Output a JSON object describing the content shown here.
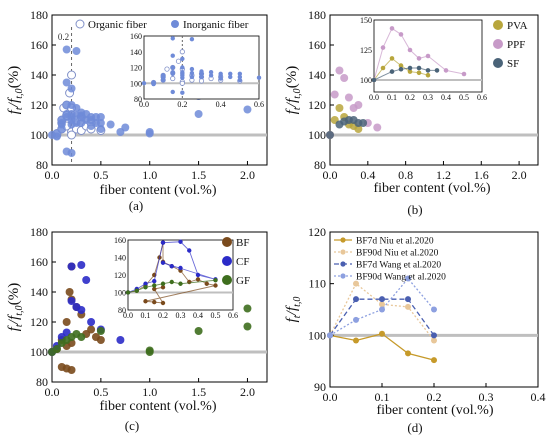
{
  "chart_data": [
    {
      "id": "a",
      "type": "scatter",
      "panel_label": "(a)",
      "xlabel": "fiber content (vol.%)",
      "ylabel_main": "f",
      "ylabel_sub": "t",
      "ylabel_over": "/f",
      "ylabel_sub2": "t,0",
      "ylabel_tail": " (%)",
      "xlim": [
        0,
        2.2
      ],
      "ylim": [
        80,
        180
      ],
      "xticks": [
        "0.0",
        "0.5",
        "1.0",
        "1.5",
        "2.0"
      ],
      "yticks": [
        "80",
        "100",
        "120",
        "140",
        "160",
        "180"
      ],
      "reference_y": 100,
      "vline_x": 0.2,
      "vline_label": "0.2",
      "legend": [
        "Organic fiber",
        "Inorganic fiber"
      ],
      "colors": {
        "organic": "#7b8ccf",
        "inorganic": "#6f8bd8",
        "reference": "#bfbfbf"
      },
      "series": [
        {
          "name": "Organic fiber",
          "style": "open",
          "x": [
            0.05,
            0.05,
            0.1,
            0.1,
            0.1,
            0.12,
            0.15,
            0.15,
            0.15,
            0.18,
            0.2,
            0.2,
            0.2,
            0.25,
            0.25,
            0.3,
            0.3,
            0.3,
            0.35,
            0.4,
            0.4,
            0.5,
            0.2
          ],
          "y": [
            100,
            101,
            104,
            108,
            110,
            118,
            106,
            113,
            120,
            128,
            102,
            118,
            140,
            104,
            110,
            108,
            112,
            103,
            106,
            108,
            104,
            103,
            100
          ]
        },
        {
          "name": "Inorganic fiber",
          "style": "filled",
          "x": [
            0.0,
            0.05,
            0.05,
            0.1,
            0.1,
            0.1,
            0.1,
            0.15,
            0.15,
            0.15,
            0.15,
            0.15,
            0.2,
            0.2,
            0.2,
            0.2,
            0.2,
            0.25,
            0.25,
            0.25,
            0.3,
            0.3,
            0.3,
            0.3,
            0.35,
            0.35,
            0.4,
            0.4,
            0.4,
            0.45,
            0.45,
            0.5,
            0.5,
            0.5,
            0.6,
            0.7,
            0.75,
            1.0,
            1.0,
            1.5,
            1.5,
            2.0,
            2.0,
            0.15,
            0.2,
            0.25,
            0.2
          ],
          "y": [
            100,
            101,
            99,
            104,
            107,
            108,
            110,
            112,
            114,
            120,
            135,
            157,
            107,
            110,
            112,
            114,
            120,
            108,
            113,
            118,
            108,
            112,
            113,
            115,
            110,
            114,
            106,
            110,
            112,
            108,
            112,
            104,
            108,
            112,
            107,
            102,
            105,
            101,
            102,
            114,
            126,
            117,
            129,
            89,
            88,
            156,
            131
          ]
        }
      ],
      "inset": {
        "xlim": [
          0,
          0.6
        ],
        "ylim": [
          80,
          160
        ],
        "xticks": [
          "0.0",
          "0.2",
          "0.4",
          "0.6"
        ],
        "yticks": [
          "80",
          "100",
          "120",
          "140",
          "160"
        ],
        "vline_x": 0.2
      }
    },
    {
      "id": "b",
      "type": "line",
      "panel_label": "(b)",
      "xlabel": "fiber content (vol.%)",
      "ylabel_main": "f",
      "ylabel_sub": "t",
      "ylabel_over": "/f",
      "ylabel_sub2": "t,0",
      "ylabel_tail": " (%)",
      "xlim": [
        0,
        2.2
      ],
      "ylim": [
        80,
        180
      ],
      "xticks": [
        "0.0",
        "0.4",
        "0.8",
        "1.2",
        "1.6",
        "2.0"
      ],
      "yticks": [
        "80",
        "100",
        "120",
        "140",
        "160",
        "180"
      ],
      "reference_y": 100,
      "legend": [
        "PVA",
        "PPF",
        "SF"
      ],
      "colors": {
        "PVA": "#b8a63c",
        "PPF": "#c79ac8",
        "SF": "#4a6378",
        "reference": "#bfbfbf"
      },
      "series": [
        {
          "name": "PVA",
          "x": [
            0.0,
            0.05,
            0.1,
            0.15,
            0.2,
            0.25,
            0.3
          ],
          "y": [
            100,
            110,
            118,
            112,
            107,
            106,
            104
          ]
        },
        {
          "name": "PPF",
          "x": [
            0.0,
            0.05,
            0.1,
            0.15,
            0.2,
            0.25,
            0.3,
            0.4,
            0.5
          ],
          "y": [
            100,
            127,
            143,
            138,
            125,
            118,
            120,
            108,
            105
          ]
        },
        {
          "name": "SF",
          "x": [
            0.0,
            0.1,
            0.15,
            0.2,
            0.25,
            0.3,
            0.35
          ],
          "y": [
            100,
            107,
            109,
            110,
            110,
            108,
            108
          ]
        }
      ],
      "inset": {
        "xlim": [
          0,
          0.6
        ],
        "ylim": [
          90,
          150
        ],
        "xticks": [
          "0.0",
          "0.1",
          "0.2",
          "0.3",
          "0.4",
          "0.5",
          "0.6"
        ],
        "yticks": [
          "100",
          "125",
          "150"
        ]
      }
    },
    {
      "id": "c",
      "type": "line",
      "panel_label": "(c)",
      "xlabel": "fiber content (vol.%)",
      "ylabel_main": "f",
      "ylabel_sub": "t",
      "ylabel_over": "/f",
      "ylabel_sub2": "t,0",
      "ylabel_tail": " (%)",
      "xlim": [
        0,
        2.2
      ],
      "ylim": [
        80,
        180
      ],
      "xticks": [
        "0.0",
        "0.5",
        "1.0",
        "1.5",
        "2.0"
      ],
      "yticks": [
        "80",
        "100",
        "120",
        "140",
        "160",
        "180"
      ],
      "reference_y": 100,
      "legend": [
        "BF",
        "CF",
        "GF"
      ],
      "colors": {
        "BF": "#7a4a1c",
        "CF": "#2b2bc8",
        "GF": "#3e6e1e",
        "reference": "#bfbfbf"
      },
      "series": [
        {
          "name": "BF",
          "x": [
            0.0,
            0.05,
            0.1,
            0.15,
            0.18,
            0.2,
            0.2,
            0.25,
            0.3,
            0.35,
            0.4,
            0.45,
            0.5,
            0.1,
            0.15,
            0.2,
            0.15,
            0.2
          ],
          "y": [
            100,
            102,
            108,
            120,
            140,
            157,
            135,
            130,
            125,
            112,
            115,
            110,
            108,
            90,
            89,
            88,
            104,
            106
          ]
        },
        {
          "name": "CF",
          "x": [
            0.0,
            0.05,
            0.1,
            0.15,
            0.2,
            0.3,
            0.35,
            0.4,
            0.5,
            0.7,
            0.2,
            0.25,
            0.3
          ],
          "y": [
            100,
            104,
            110,
            113,
            157,
            158,
            148,
            120,
            115,
            108,
            134,
            130,
            128
          ]
        },
        {
          "name": "GF",
          "x": [
            0.0,
            0.05,
            0.1,
            0.15,
            0.2,
            0.25,
            0.3,
            0.5,
            1.0,
            1.0,
            1.5,
            2.0,
            2.0
          ],
          "y": [
            100,
            102,
            106,
            108,
            110,
            112,
            110,
            114,
            101,
            100,
            114,
            117,
            129
          ]
        }
      ],
      "inset": {
        "xlim": [
          0,
          0.6
        ],
        "ylim": [
          80,
          160
        ],
        "xticks": [
          "0.0",
          "0.1",
          "0.2",
          "0.3",
          "0.4",
          "0.5",
          "0.6"
        ],
        "yticks": [
          "80",
          "100",
          "120",
          "140",
          "160"
        ]
      }
    },
    {
      "id": "d",
      "type": "line",
      "panel_label": "(d)",
      "xlabel": "fiber content (vol.%)",
      "ylabel_main": "f",
      "ylabel_sub": "t",
      "ylabel_over": "/f",
      "ylabel_sub2": "t,0",
      "ylabel_tail": "",
      "xlim": [
        0,
        0.4
      ],
      "ylim": [
        90,
        120
      ],
      "xticks": [
        "0.0",
        "0.1",
        "0.2",
        "0.3",
        "0.4"
      ],
      "yticks": [
        "90",
        "100",
        "110",
        "120"
      ],
      "reference_y": 100,
      "x": [
        0.0,
        0.05,
        0.1,
        0.15,
        0.2
      ],
      "series": [
        {
          "name": "BF7d Niu et al.2020",
          "values": [
            100,
            99,
            100.3,
            96.5,
            95.2
          ],
          "color": "#c69a2a",
          "style": "solid"
        },
        {
          "name": "BF90d Niu et al.2020",
          "values": [
            100,
            110,
            106,
            105.5,
            99
          ],
          "color": "#e8c79a",
          "style": "dotted"
        },
        {
          "name": "BF7d Wang et al.2020",
          "values": [
            100,
            107,
            107,
            107,
            100
          ],
          "color": "#4a5fb0",
          "style": "dashed"
        },
        {
          "name": "BF90d Wang et al.2020",
          "values": [
            100,
            103,
            105,
            111,
            105
          ],
          "color": "#8da0e0",
          "style": "dotted"
        }
      ]
    }
  ]
}
